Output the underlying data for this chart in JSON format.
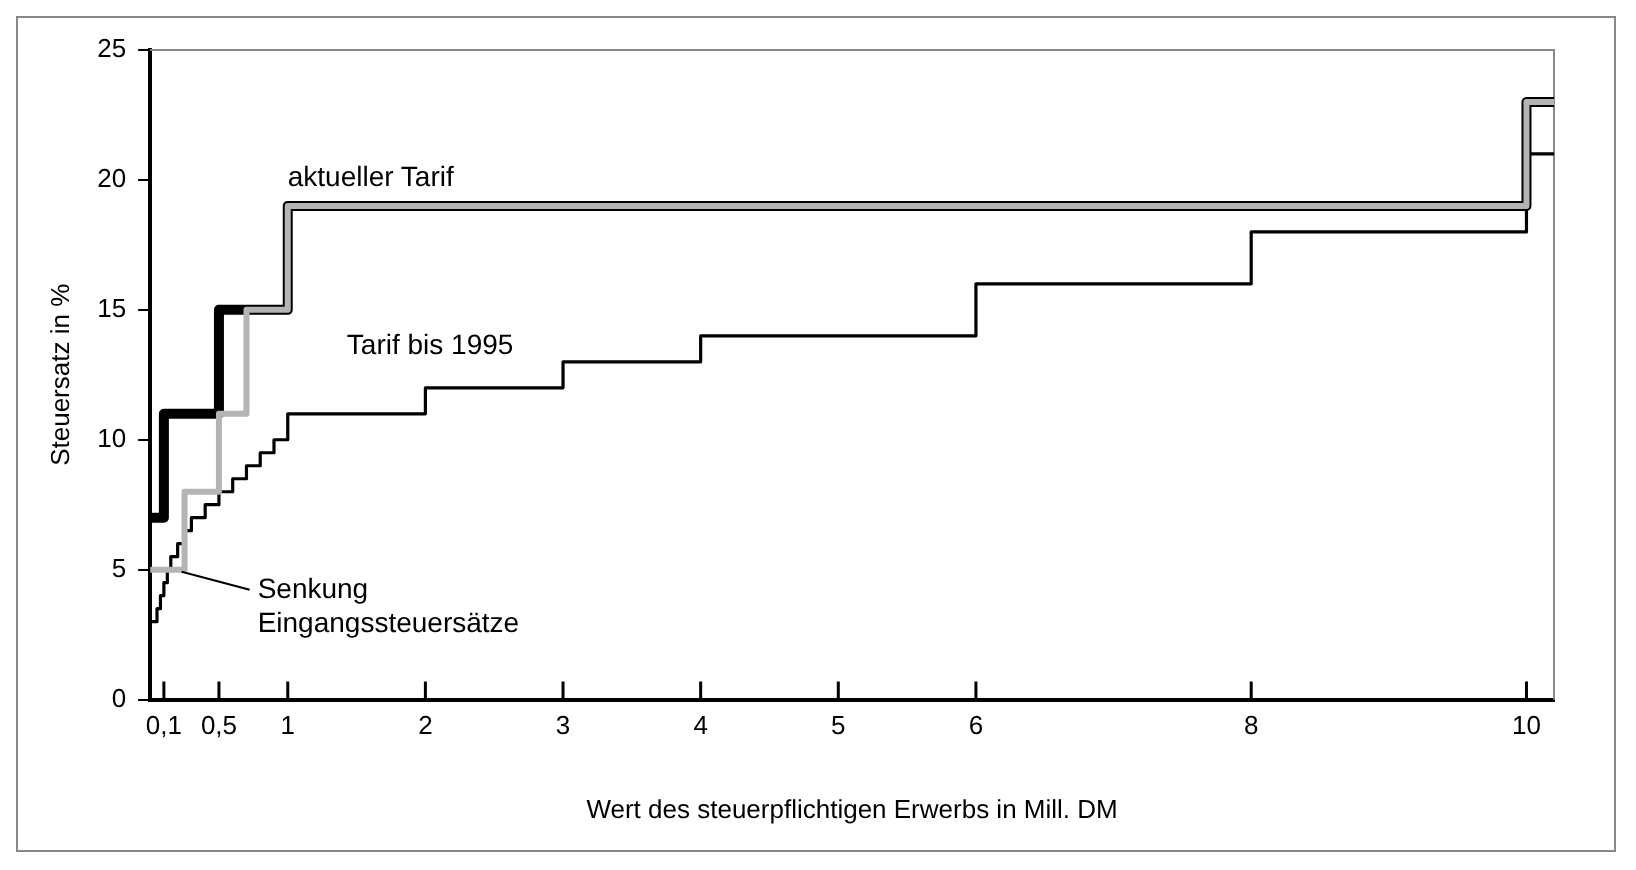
{
  "chart_data": {
    "type": "step",
    "xlabel": "Wert des steuerpflichtigen Erwerbs in Mill. DM",
    "ylabel": "Steuersatz in %",
    "xlim": [
      0,
      10.2
    ],
    "xticks": [
      {
        "value": 0.1,
        "label": "0,1"
      },
      {
        "value": 0.5,
        "label": "0,5"
      },
      1,
      2,
      3,
      4,
      5,
      6,
      8,
      10
    ],
    "ylim": [
      0,
      25
    ],
    "yticks": [
      0,
      5,
      10,
      15,
      20,
      25
    ],
    "grid": false,
    "legend": false,
    "marker": "none",
    "line_style": "solid",
    "series": [
      {
        "color": "#000000",
        "x": [
          0,
          0.05,
          0.075,
          0.1,
          0.125,
          0.15,
          0.2,
          0.25,
          0.3,
          0.4,
          0.5,
          0.6,
          0.7,
          0.8,
          0.9,
          1,
          2,
          3,
          4,
          6,
          8,
          10,
          10.2
        ],
        "values": [
          3,
          3.5,
          4,
          4.5,
          5,
          5.5,
          6,
          6.5,
          7,
          7.5,
          8,
          8.5,
          9,
          9.5,
          10,
          11,
          12,
          13,
          14,
          16,
          18,
          21,
          21
        ]
      },
      {
        "color": "#000000",
        "x": [
          0,
          0.1,
          0.5,
          1,
          10,
          10.2
        ],
        "values": [
          7,
          11,
          15,
          19,
          23,
          23
        ]
      },
      {
        "color": "#b4b4b4",
        "x": [
          0,
          0.25,
          0.5,
          0.7,
          1,
          10,
          10.2
        ],
        "values": [
          5,
          8,
          11,
          15,
          19,
          23,
          23
        ]
      }
    ],
    "annotations": [
      {
        "text": "aktueller Tarif",
        "x": 1,
        "y": 19
      },
      {
        "text": "Tarif bis 1995",
        "x": 1.4,
        "y": 11
      },
      {
        "text": "Senkung Eingangssteuersätze",
        "x": 0.2,
        "y": 5
      }
    ]
  }
}
